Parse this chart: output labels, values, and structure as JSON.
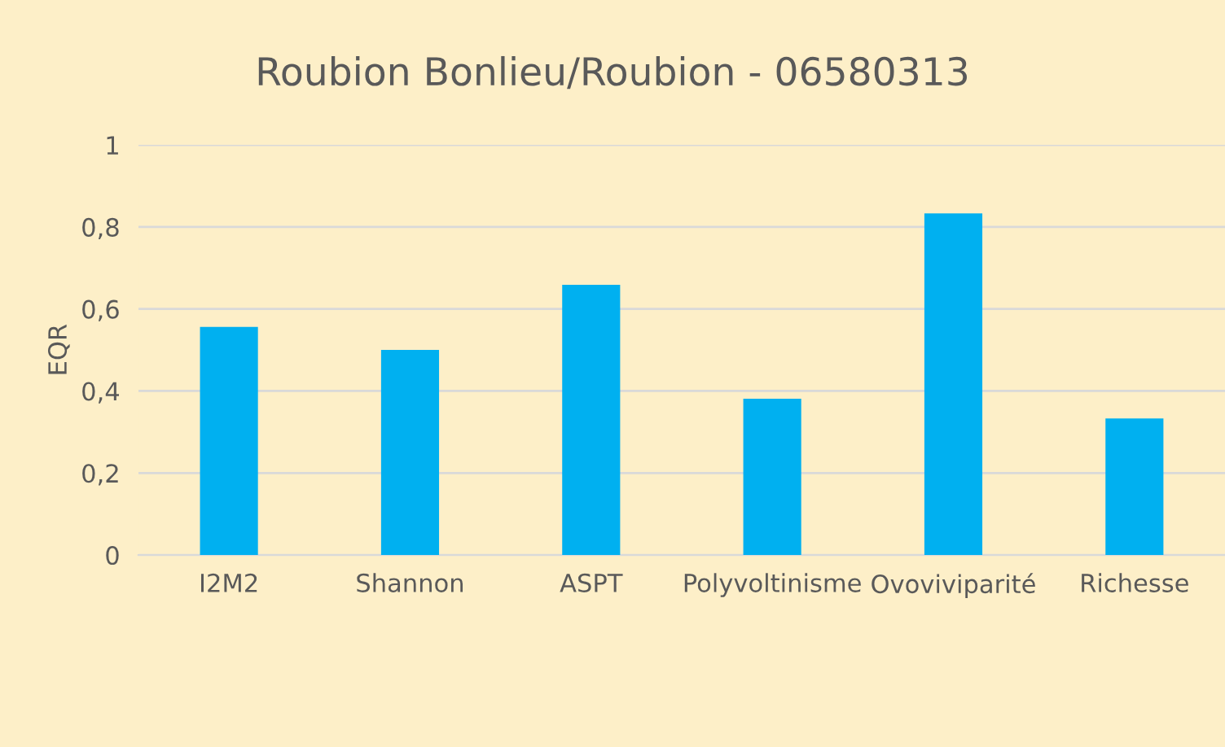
{
  "chart_data": {
    "type": "bar",
    "title": "Roubion Bonlieu/Roubion - 06580313",
    "ylabel": "EQR",
    "categories": [
      "I2M2",
      "Shannon",
      "ASPT",
      "Polyvoltinisme",
      "Ovoviviparité",
      "Richesse"
    ],
    "values": [
      0.556,
      0.5,
      0.659,
      0.381,
      0.833,
      0.333
    ],
    "color": "#00b0f0",
    "ylim": [
      0,
      1
    ],
    "yticks": [
      0,
      {
        "value": 0.2,
        "label": "0,2"
      },
      {
        "value": 0.4,
        "label": "0,4"
      },
      {
        "value": 0.6,
        "label": "0,6"
      },
      {
        "value": 0.8,
        "label": "0,8"
      },
      1
    ],
    "grid": "y"
  }
}
